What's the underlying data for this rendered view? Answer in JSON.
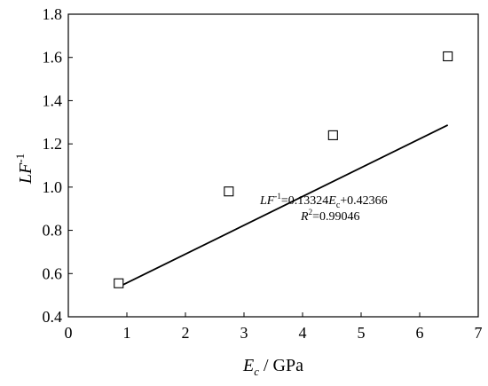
{
  "chart_data": {
    "type": "scatter",
    "title": "",
    "xlabel": {
      "main": "E",
      "sub": "c",
      "rest": " / GPa"
    },
    "ylabel": {
      "main": "LF",
      "sup": "-1"
    },
    "xlim": [
      0,
      7
    ],
    "ylim": [
      0.4,
      1.8
    ],
    "xticks": [
      0,
      1,
      2,
      3,
      4,
      5,
      6,
      7
    ],
    "xtick_labels": [
      "0",
      "1",
      "2",
      "3",
      "4",
      "5",
      "6",
      "7"
    ],
    "yticks": [
      0.4,
      0.6,
      0.8,
      1.0,
      1.2,
      1.4,
      1.6,
      1.8
    ],
    "ytick_labels": [
      "0.4",
      "0.6",
      "0.8",
      "1.0",
      "1.2",
      "1.4",
      "1.6",
      "1.8"
    ],
    "grid": false,
    "series": [
      {
        "marker": "open-square",
        "points": [
          {
            "x": 0.86,
            "y": 0.555
          },
          {
            "x": 2.74,
            "y": 0.98
          },
          {
            "x": 4.52,
            "y": 1.24
          },
          {
            "x": 6.48,
            "y": 1.605
          }
        ]
      }
    ],
    "fit": {
      "slope": 0.13324,
      "intercept": 0.42366,
      "x_range": [
        0.86,
        6.48
      ]
    },
    "annotation": {
      "equation": {
        "p1": "LF",
        "p2": "-1",
        "p3": "=0.13324",
        "p4": "E",
        "p5": "c",
        "p6": "+0.42366"
      },
      "r2": {
        "p1": "R",
        "p2": "2",
        "p3": "=0.99046"
      }
    }
  }
}
